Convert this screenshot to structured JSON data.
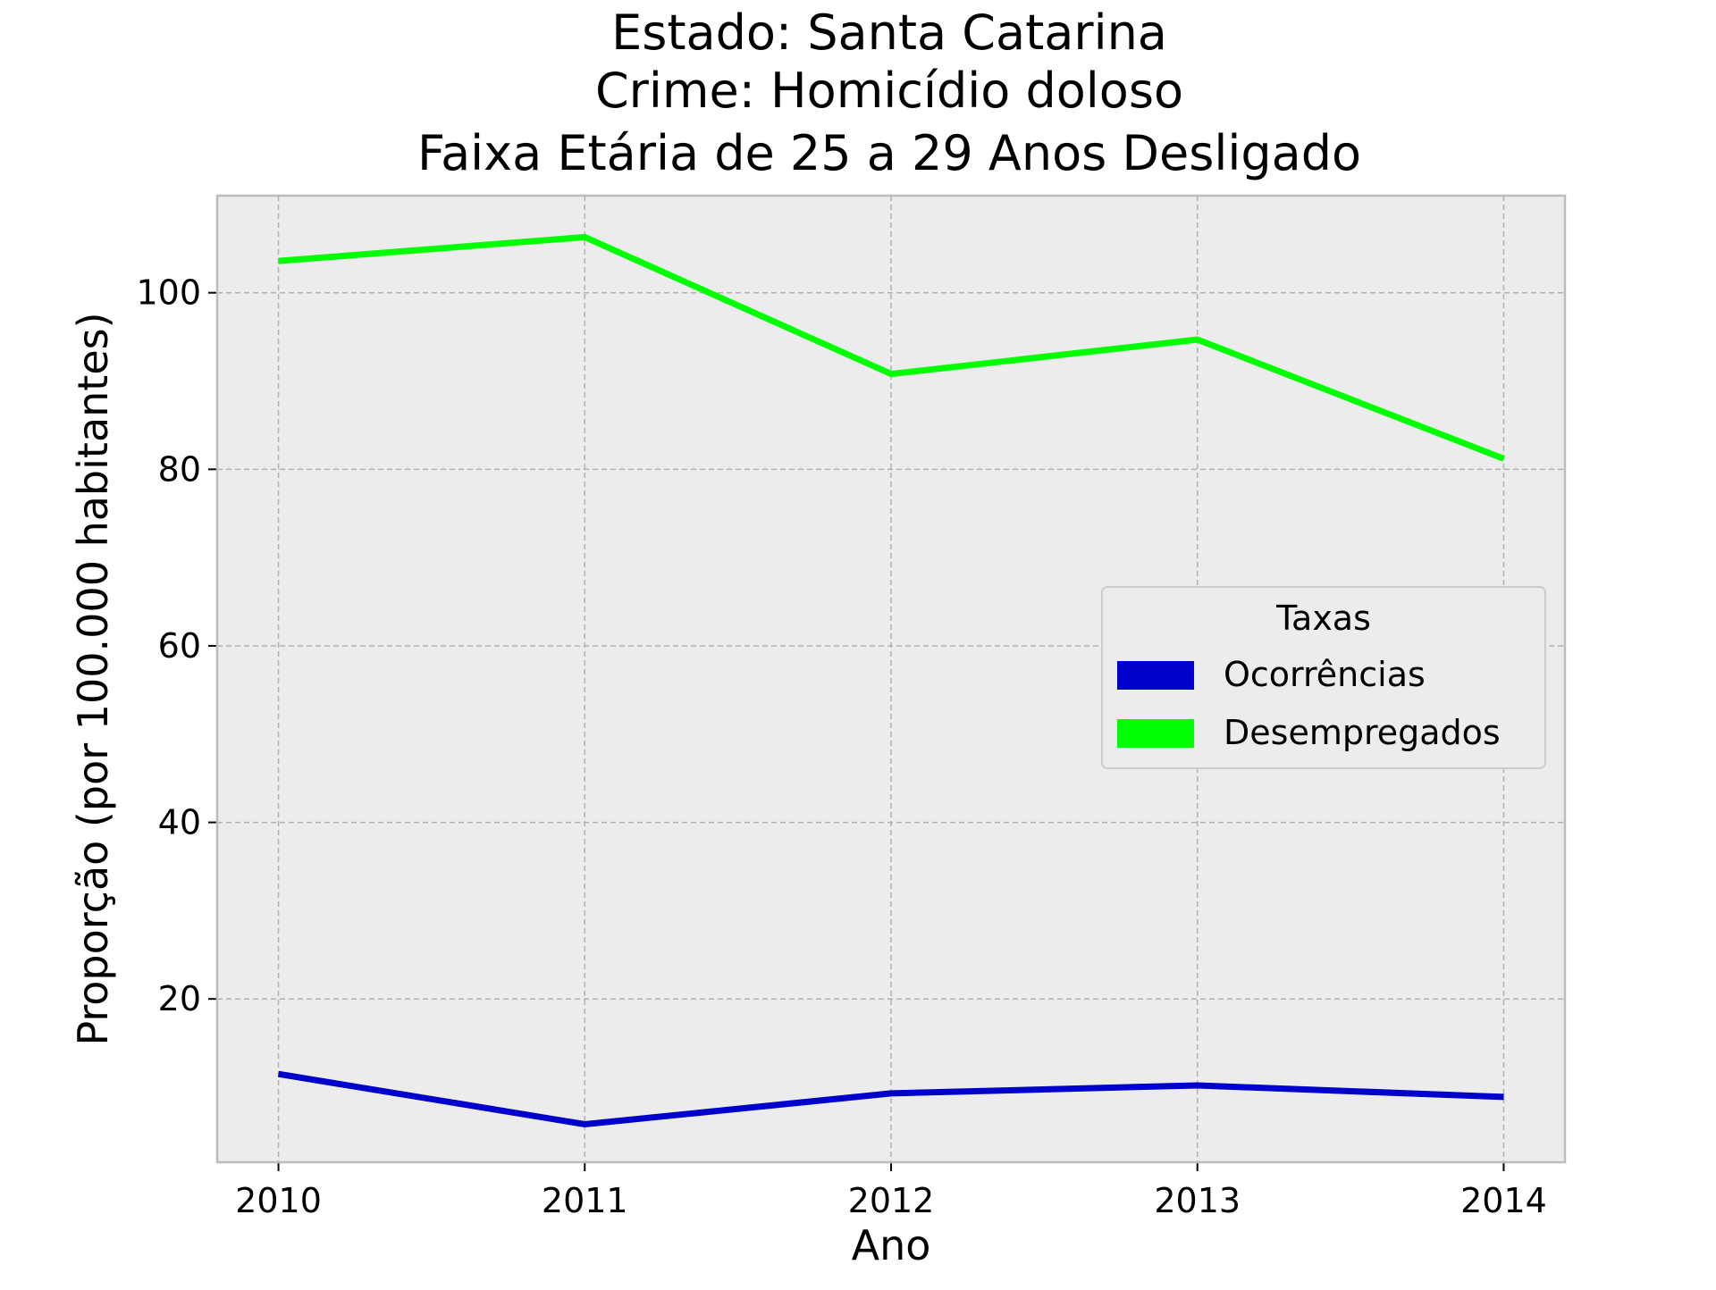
{
  "chart_data": {
    "type": "line",
    "title_lines": [
      "Estado: Santa Catarina",
      "Crime: Homicídio doloso",
      "Faixa Etária de 25 a 29 Anos   Desligado"
    ],
    "xlabel": "Ano",
    "ylabel": "Proporção (por 100.000 habitantes)",
    "x": [
      2010,
      2011,
      2012,
      2013,
      2014
    ],
    "x_tick_labels": [
      "2010",
      "2011",
      "2012",
      "2013",
      "2014"
    ],
    "y_ticks": [
      20,
      40,
      60,
      80,
      100
    ],
    "y_tick_labels": [
      "20",
      "40",
      "60",
      "80",
      "100"
    ],
    "xlim": [
      2009.8,
      2014.2
    ],
    "ylim": [
      1.5,
      111
    ],
    "grid": true,
    "legend": {
      "title": "Taxas",
      "placement": "center-right"
    },
    "series": [
      {
        "name": "Ocorrências",
        "color": "#0000cc",
        "values": [
          11.5,
          5.8,
          9.3,
          10.2,
          8.9
        ]
      },
      {
        "name": "Desempregados",
        "color": "#00ff00",
        "values": [
          103.6,
          106.3,
          90.8,
          94.7,
          81.2
        ]
      }
    ],
    "colors": {
      "plot_background": "#ececec",
      "grid": "#b0b0b0",
      "frame": "#bcbcbc"
    }
  }
}
